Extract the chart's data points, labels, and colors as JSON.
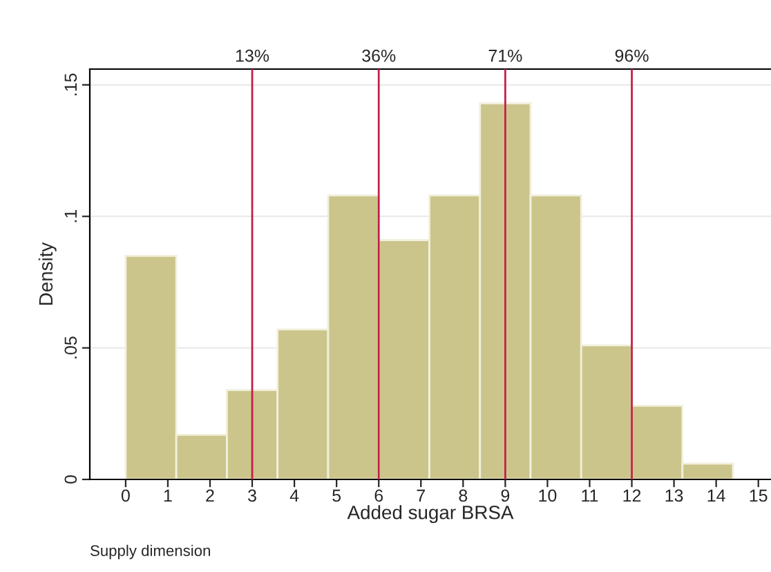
{
  "chart_data": {
    "type": "histogram",
    "xlabel": "Added sugar BRSA",
    "ylabel": "Density",
    "bins": [
      0,
      1.2,
      2.4,
      3.6,
      4.8,
      6,
      7.2,
      8.4,
      9.6,
      10.8,
      12,
      13.2,
      14.4
    ],
    "values": [
      0.085,
      0.017,
      0.034,
      0.057,
      0.108,
      0.091,
      0.108,
      0.143,
      0.108,
      0.051,
      0.028,
      0.006
    ],
    "color": "#ccc58b",
    "xlim": [
      -0.85,
      15.3
    ],
    "ylim": [
      0,
      0.156
    ],
    "xticks": [
      0,
      1,
      2,
      3,
      4,
      5,
      6,
      7,
      8,
      9,
      10,
      11,
      12,
      13,
      14,
      15
    ],
    "yticks": [
      {
        "value": 0,
        "label": "0"
      },
      {
        "value": 0.05,
        "label": ".05"
      },
      {
        "value": 0.1,
        "label": ".1"
      },
      {
        "value": 0.15,
        "label": ".15"
      }
    ],
    "grid": "y",
    "ref_lines": [
      {
        "axis": "x",
        "value": 3,
        "color": "#c41e4a"
      },
      {
        "axis": "x",
        "value": 6,
        "color": "#c41e4a"
      },
      {
        "axis": "x",
        "value": 9,
        "color": "#c41e4a"
      },
      {
        "axis": "x",
        "value": 12,
        "color": "#c41e4a"
      }
    ],
    "annotations": [
      {
        "text": "13%",
        "x": 3,
        "y": 0.156
      },
      {
        "text": "36%",
        "x": 6,
        "y": 0.156
      },
      {
        "text": "71%",
        "x": 9,
        "y": 0.156
      },
      {
        "text": "96%",
        "x": 12,
        "y": 0.156
      },
      "Supply dimension"
    ]
  }
}
